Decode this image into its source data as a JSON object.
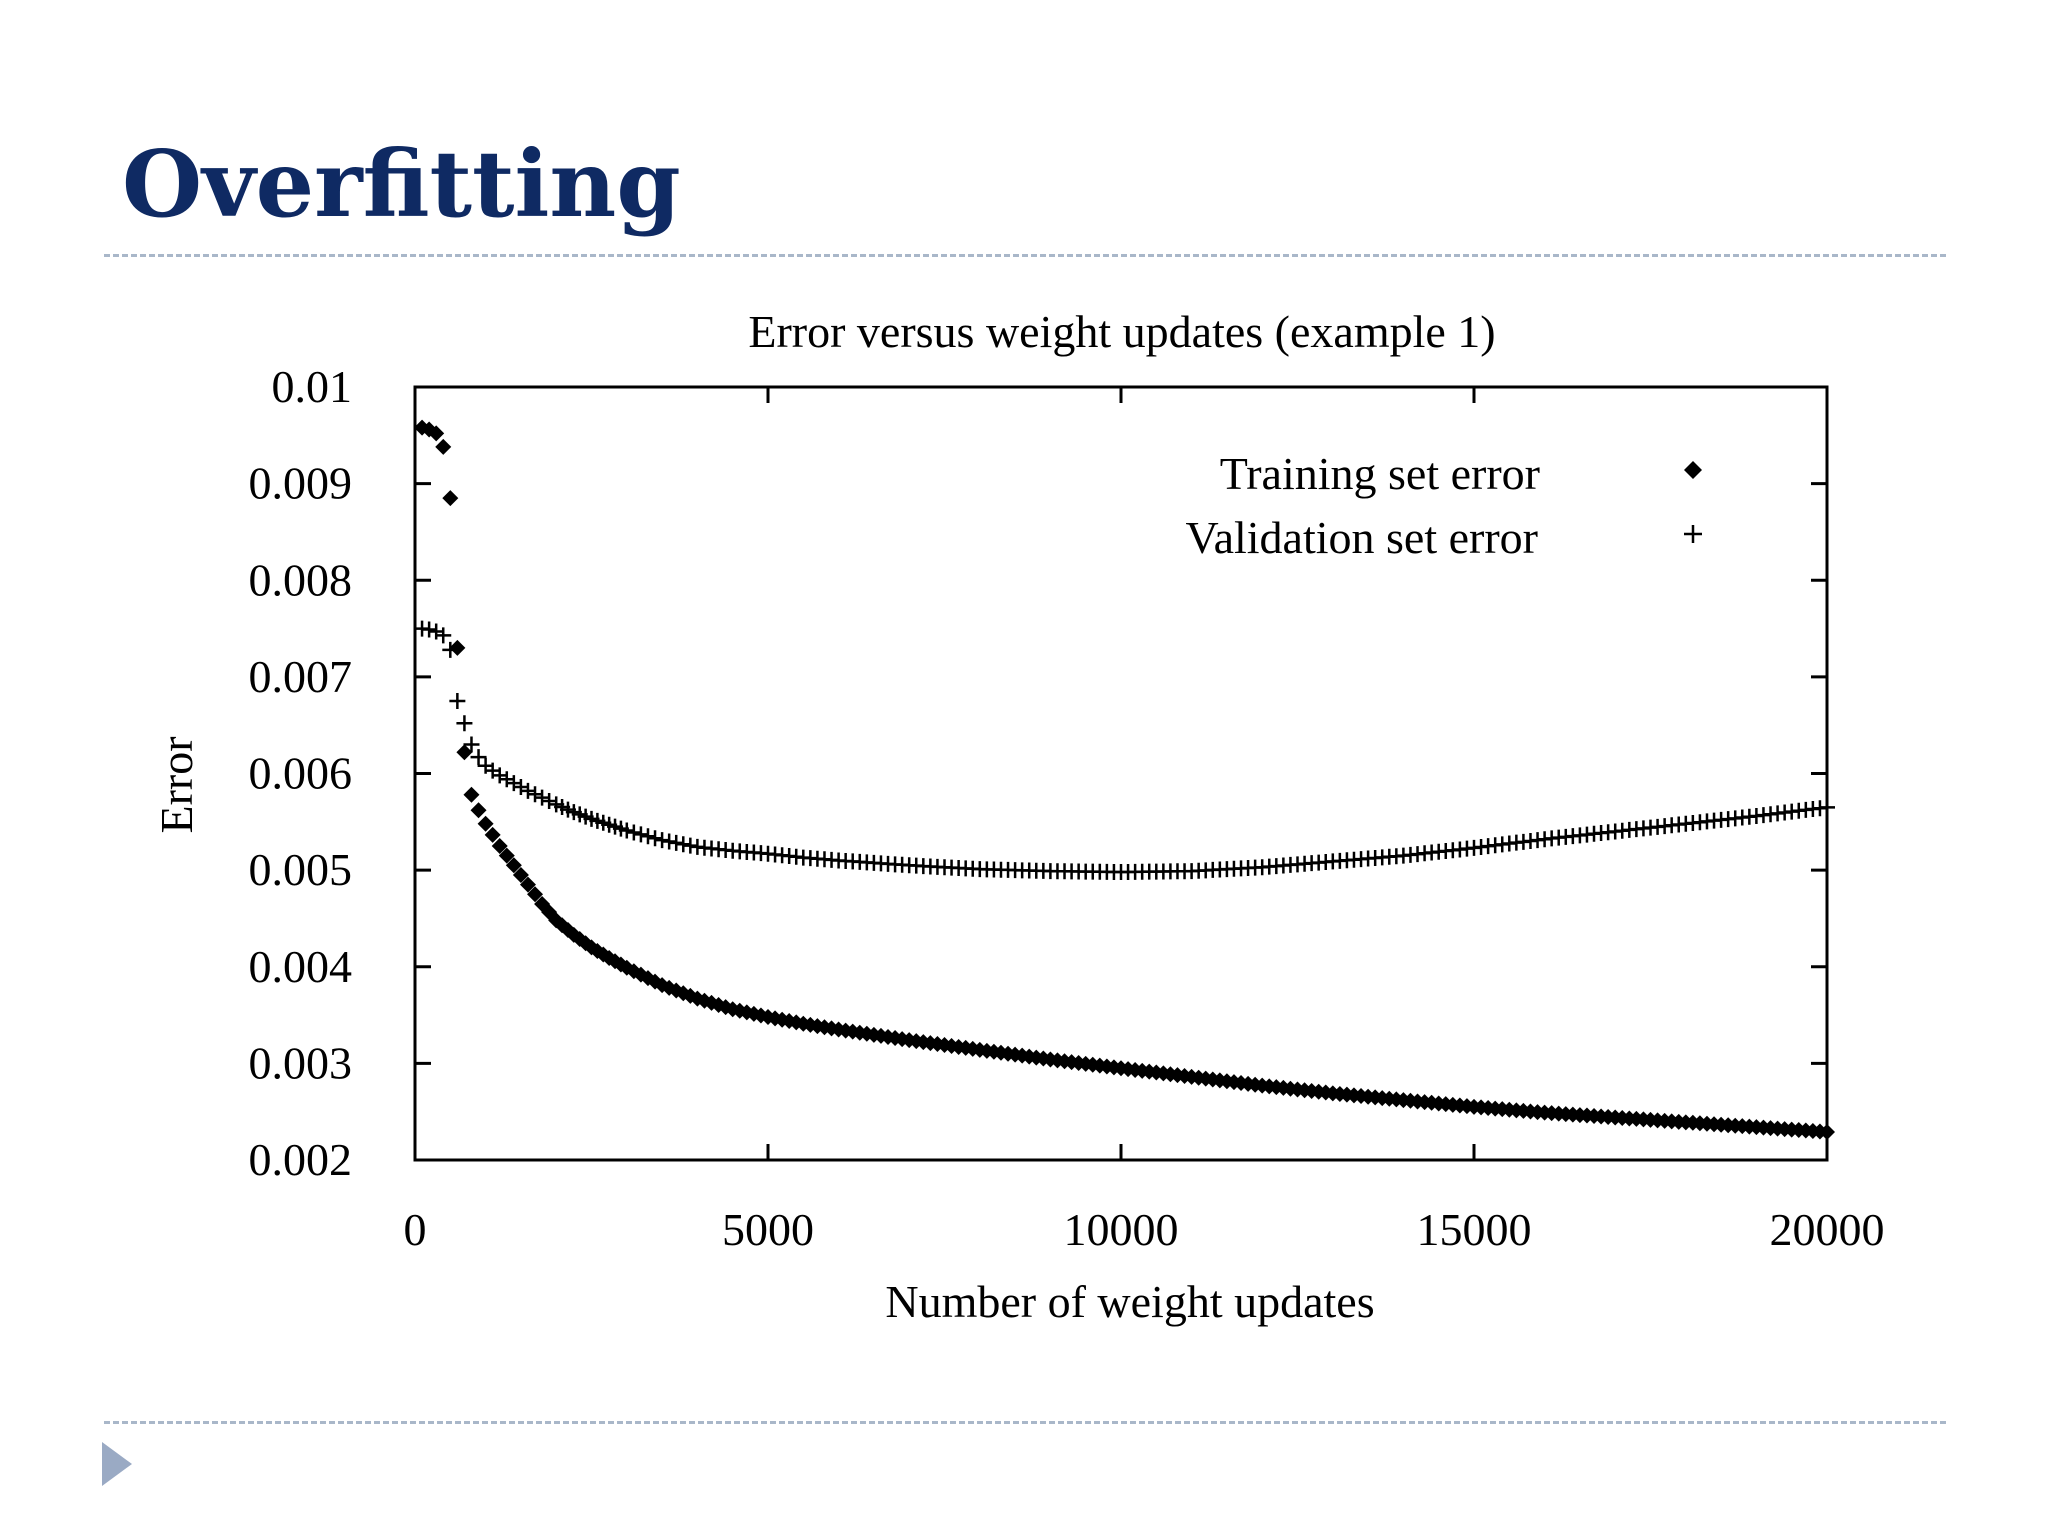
{
  "slide": {
    "title": "Overfitting"
  },
  "colors": {
    "title": "#0f2a63",
    "rule": "#a9b7c9",
    "nav_arrow": "#9aaac4",
    "ink": "#000000"
  },
  "icons": {
    "nav": "play-triangle-icon"
  },
  "chart_data": {
    "type": "scatter",
    "title": "Error versus weight updates (example 1)",
    "xlabel": "Number of weight updates",
    "ylabel": "Error",
    "xlim": [
      0,
      20000
    ],
    "ylim": [
      0.002,
      0.01
    ],
    "xticks": [
      "0",
      "5000",
      "10000",
      "15000",
      "20000"
    ],
    "yticks": [
      "0.002",
      "0.003",
      "0.004",
      "0.005",
      "0.006",
      "0.007",
      "0.008",
      "0.009",
      "0.01"
    ],
    "grid": false,
    "legend": "top-right",
    "x": [
      100,
      200,
      300,
      400,
      500,
      600,
      700,
      800,
      900,
      1000,
      1200,
      1400,
      1600,
      1800,
      2000,
      2250,
      2500,
      2750,
      3000,
      3500,
      4000,
      4500,
      5000,
      5500,
      6000,
      7000,
      8000,
      9000,
      10000,
      11000,
      12000,
      13000,
      14000,
      15000,
      16000,
      17000,
      18000,
      19000,
      20000
    ],
    "series": [
      {
        "name": "Training set error",
        "marker": "diamond",
        "values": [
          0.00958,
          0.00956,
          0.00952,
          0.00938,
          0.00885,
          0.0073,
          0.00622,
          0.00578,
          0.00562,
          0.00548,
          0.00525,
          0.00505,
          0.00485,
          0.00465,
          0.00448,
          0.00433,
          0.0042,
          0.00409,
          0.00399,
          0.00381,
          0.00367,
          0.00356,
          0.00348,
          0.00341,
          0.00335,
          0.00324,
          0.00314,
          0.00304,
          0.00295,
          0.00286,
          0.00277,
          0.00269,
          0.00262,
          0.00255,
          0.00249,
          0.00244,
          0.00239,
          0.00234,
          0.00229
        ]
      },
      {
        "name": "Validation set error",
        "marker": "plus",
        "values": [
          0.0075,
          0.00749,
          0.00747,
          0.00743,
          0.00728,
          0.00675,
          0.00652,
          0.0063,
          0.00617,
          0.00608,
          0.00598,
          0.0059,
          0.00582,
          0.00575,
          0.00568,
          0.0056,
          0.00553,
          0.00547,
          0.00541,
          0.00531,
          0.00524,
          0.0052,
          0.00517,
          0.00513,
          0.0051,
          0.00505,
          0.00501,
          0.00499,
          0.00498,
          0.00499,
          0.00503,
          0.00509,
          0.00515,
          0.00523,
          0.00532,
          0.0054,
          0.00548,
          0.00556,
          0.00565
        ]
      }
    ]
  }
}
